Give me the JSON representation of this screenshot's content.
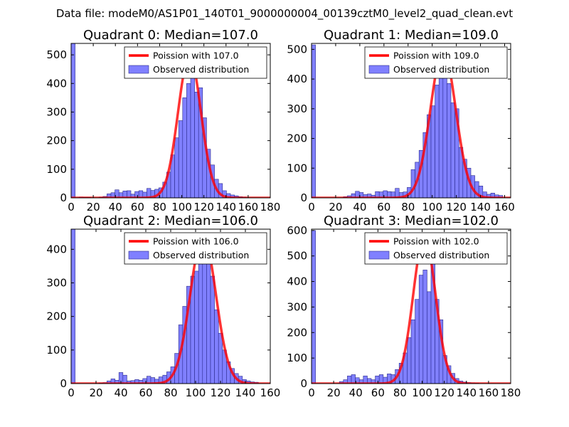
{
  "figure": {
    "suptitle": "Data file: modeM0/AS1P01_140T01_9000000004_00139cztM0_level2_quad_clean.evt"
  },
  "colors": {
    "bars": "#8080ff",
    "bar_edge": "#2a2a8a",
    "curve": "#ff0000",
    "axes": "#000000",
    "background": "#ffffff"
  },
  "chart_data": [
    {
      "type": "bar",
      "panel": "top-left",
      "title": "Quadrant 0: Median=107.0",
      "xlim": [
        0,
        180
      ],
      "ylim": [
        0,
        540
      ],
      "xticks": [
        0,
        20,
        40,
        60,
        80,
        100,
        120,
        140,
        160,
        180
      ],
      "yticks": [
        0,
        100,
        200,
        300,
        400,
        500
      ],
      "bin_width": 3.6,
      "legend": {
        "position": "top-right",
        "entries": [
          "Poission with 107.0",
          "Observed distribution"
        ]
      },
      "histogram": [
        {
          "x": 0,
          "value": 540
        },
        {
          "x": 7.2,
          "value": 3
        },
        {
          "x": 10.8,
          "value": 2
        },
        {
          "x": 14.4,
          "value": 2
        },
        {
          "x": 25.2,
          "value": 3
        },
        {
          "x": 28.8,
          "value": 5
        },
        {
          "x": 32.4,
          "value": 14
        },
        {
          "x": 36,
          "value": 18
        },
        {
          "x": 39.6,
          "value": 28
        },
        {
          "x": 43.2,
          "value": 18
        },
        {
          "x": 46.8,
          "value": 24
        },
        {
          "x": 50.4,
          "value": 25
        },
        {
          "x": 54,
          "value": 13
        },
        {
          "x": 57.6,
          "value": 22
        },
        {
          "x": 61.2,
          "value": 25
        },
        {
          "x": 64.8,
          "value": 20
        },
        {
          "x": 68.4,
          "value": 33
        },
        {
          "x": 72,
          "value": 26
        },
        {
          "x": 75.6,
          "value": 30
        },
        {
          "x": 79.2,
          "value": 35
        },
        {
          "x": 82.8,
          "value": 55
        },
        {
          "x": 86.4,
          "value": 90
        },
        {
          "x": 90,
          "value": 150
        },
        {
          "x": 93.6,
          "value": 210
        },
        {
          "x": 97.2,
          "value": 270
        },
        {
          "x": 100.8,
          "value": 350
        },
        {
          "x": 104.4,
          "value": 400
        },
        {
          "x": 108,
          "value": 520
        },
        {
          "x": 111.6,
          "value": 370
        },
        {
          "x": 115.2,
          "value": 385
        },
        {
          "x": 118.8,
          "value": 280
        },
        {
          "x": 122.4,
          "value": 170
        },
        {
          "x": 126,
          "value": 115
        },
        {
          "x": 129.6,
          "value": 65
        },
        {
          "x": 133.2,
          "value": 50
        },
        {
          "x": 136.8,
          "value": 25
        },
        {
          "x": 140.4,
          "value": 15
        },
        {
          "x": 144,
          "value": 10
        },
        {
          "x": 147.6,
          "value": 7
        },
        {
          "x": 151.2,
          "value": 4
        },
        {
          "x": 154.8,
          "value": 3
        }
      ],
      "poisson": {
        "mean": 107.0,
        "peak": 495
      }
    },
    {
      "type": "bar",
      "panel": "top-right",
      "title": "Quadrant 1: Median=109.0",
      "xlim": [
        0,
        165
      ],
      "ylim": [
        0,
        520
      ],
      "xticks": [
        0,
        20,
        40,
        60,
        80,
        100,
        120,
        140,
        160
      ],
      "yticks": [
        0,
        100,
        200,
        300,
        400,
        500
      ],
      "bin_width": 3.3,
      "legend": {
        "position": "top-right",
        "entries": [
          "Poission with 109.0",
          "Observed distribution"
        ]
      },
      "histogram": [
        {
          "x": 0,
          "value": 515
        },
        {
          "x": 26.4,
          "value": 4
        },
        {
          "x": 29.7,
          "value": 7
        },
        {
          "x": 33,
          "value": 14
        },
        {
          "x": 36.3,
          "value": 22
        },
        {
          "x": 39.6,
          "value": 18
        },
        {
          "x": 42.9,
          "value": 11
        },
        {
          "x": 46.2,
          "value": 13
        },
        {
          "x": 49.5,
          "value": 9
        },
        {
          "x": 52.8,
          "value": 21
        },
        {
          "x": 56.1,
          "value": 20
        },
        {
          "x": 59.4,
          "value": 24
        },
        {
          "x": 62.7,
          "value": 21
        },
        {
          "x": 66,
          "value": 20
        },
        {
          "x": 69.3,
          "value": 32
        },
        {
          "x": 72.6,
          "value": 18
        },
        {
          "x": 75.9,
          "value": 20
        },
        {
          "x": 79.2,
          "value": 35
        },
        {
          "x": 82.5,
          "value": 95
        },
        {
          "x": 85.8,
          "value": 120
        },
        {
          "x": 89.1,
          "value": 160
        },
        {
          "x": 92.4,
          "value": 220
        },
        {
          "x": 95.7,
          "value": 280
        },
        {
          "x": 99,
          "value": 310
        },
        {
          "x": 102.3,
          "value": 380
        },
        {
          "x": 105.6,
          "value": 415
        },
        {
          "x": 108.9,
          "value": 490
        },
        {
          "x": 112.2,
          "value": 385
        },
        {
          "x": 115.5,
          "value": 320
        },
        {
          "x": 118.8,
          "value": 300
        },
        {
          "x": 122.1,
          "value": 170
        },
        {
          "x": 125.4,
          "value": 130
        },
        {
          "x": 128.7,
          "value": 100
        },
        {
          "x": 132,
          "value": 75
        },
        {
          "x": 135.3,
          "value": 55
        },
        {
          "x": 138.6,
          "value": 40
        },
        {
          "x": 141.9,
          "value": 20
        },
        {
          "x": 145.2,
          "value": 12
        },
        {
          "x": 148.5,
          "value": 16
        },
        {
          "x": 151.8,
          "value": 10
        },
        {
          "x": 155.1,
          "value": 8
        }
      ],
      "poisson": {
        "mean": 109.0,
        "peak": 495
      }
    },
    {
      "type": "bar",
      "panel": "bottom-left",
      "title": "Quadrant 2: Median=106.0",
      "xlim": [
        0,
        160
      ],
      "ylim": [
        0,
        460
      ],
      "xticks": [
        0,
        20,
        40,
        60,
        80,
        100,
        120,
        140,
        160
      ],
      "yticks": [
        0,
        100,
        200,
        300,
        400
      ],
      "bin_width": 3.2,
      "legend": {
        "position": "top-right",
        "entries": [
          "Poission with 106.0",
          "Observed distribution"
        ]
      },
      "histogram": [
        {
          "x": 0,
          "value": 460
        },
        {
          "x": 22.4,
          "value": 2
        },
        {
          "x": 25.6,
          "value": 3
        },
        {
          "x": 28.8,
          "value": 8
        },
        {
          "x": 32,
          "value": 14
        },
        {
          "x": 35.2,
          "value": 10
        },
        {
          "x": 38.4,
          "value": 33
        },
        {
          "x": 41.6,
          "value": 25
        },
        {
          "x": 44.8,
          "value": 8
        },
        {
          "x": 48,
          "value": 9
        },
        {
          "x": 51.2,
          "value": 12
        },
        {
          "x": 54.4,
          "value": 10
        },
        {
          "x": 57.6,
          "value": 15
        },
        {
          "x": 60.8,
          "value": 22
        },
        {
          "x": 64,
          "value": 18
        },
        {
          "x": 67.2,
          "value": 13
        },
        {
          "x": 70.4,
          "value": 20
        },
        {
          "x": 73.6,
          "value": 25
        },
        {
          "x": 76.8,
          "value": 35
        },
        {
          "x": 80,
          "value": 50
        },
        {
          "x": 83.2,
          "value": 90
        },
        {
          "x": 86.4,
          "value": 175
        },
        {
          "x": 89.6,
          "value": 230
        },
        {
          "x": 92.8,
          "value": 290
        },
        {
          "x": 96,
          "value": 320
        },
        {
          "x": 99.2,
          "value": 335
        },
        {
          "x": 102.4,
          "value": 390
        },
        {
          "x": 105.6,
          "value": 420
        },
        {
          "x": 108.8,
          "value": 440
        },
        {
          "x": 112,
          "value": 320
        },
        {
          "x": 115.2,
          "value": 220
        },
        {
          "x": 118.4,
          "value": 150
        },
        {
          "x": 121.6,
          "value": 100
        },
        {
          "x": 124.8,
          "value": 65
        },
        {
          "x": 128,
          "value": 45
        },
        {
          "x": 131.2,
          "value": 30
        },
        {
          "x": 134.4,
          "value": 22
        },
        {
          "x": 137.6,
          "value": 12
        },
        {
          "x": 140.8,
          "value": 8
        },
        {
          "x": 144,
          "value": 5
        },
        {
          "x": 147.2,
          "value": 4
        }
      ],
      "poisson": {
        "mean": 106.0,
        "peak": 440
      }
    },
    {
      "type": "bar",
      "panel": "bottom-right",
      "title": "Quadrant 3: Median=102.0",
      "xlim": [
        0,
        180
      ],
      "ylim": [
        0,
        605
      ],
      "xticks": [
        0,
        20,
        40,
        60,
        80,
        100,
        120,
        140,
        160,
        180
      ],
      "yticks": [
        0,
        100,
        200,
        300,
        400,
        500,
        600
      ],
      "bin_width": 3.6,
      "legend": {
        "position": "top-right",
        "entries": [
          "Poission with 102.0",
          "Observed distribution"
        ]
      },
      "histogram": [
        {
          "x": 0,
          "value": 600
        },
        {
          "x": 25.2,
          "value": 8
        },
        {
          "x": 28.8,
          "value": 15
        },
        {
          "x": 32.4,
          "value": 30
        },
        {
          "x": 36,
          "value": 35
        },
        {
          "x": 39.6,
          "value": 23
        },
        {
          "x": 43.2,
          "value": 15
        },
        {
          "x": 46.8,
          "value": 30
        },
        {
          "x": 50.4,
          "value": 20
        },
        {
          "x": 54,
          "value": 15
        },
        {
          "x": 57.6,
          "value": 30
        },
        {
          "x": 61.2,
          "value": 35
        },
        {
          "x": 64.8,
          "value": 25
        },
        {
          "x": 68.4,
          "value": 38
        },
        {
          "x": 72,
          "value": 35
        },
        {
          "x": 75.6,
          "value": 55
        },
        {
          "x": 79.2,
          "value": 80
        },
        {
          "x": 82.8,
          "value": 120
        },
        {
          "x": 86.4,
          "value": 180
        },
        {
          "x": 90,
          "value": 250
        },
        {
          "x": 93.6,
          "value": 330
        },
        {
          "x": 97.2,
          "value": 425
        },
        {
          "x": 100.8,
          "value": 445
        },
        {
          "x": 104.4,
          "value": 360
        },
        {
          "x": 108,
          "value": 570
        },
        {
          "x": 111.6,
          "value": 330
        },
        {
          "x": 115.2,
          "value": 250
        },
        {
          "x": 118.8,
          "value": 110
        },
        {
          "x": 122.4,
          "value": 70
        },
        {
          "x": 126,
          "value": 40
        },
        {
          "x": 129.6,
          "value": 20
        },
        {
          "x": 133.2,
          "value": 10
        },
        {
          "x": 136.8,
          "value": 6
        },
        {
          "x": 140.4,
          "value": 4
        },
        {
          "x": 144,
          "value": 3
        },
        {
          "x": 147.6,
          "value": 2
        }
      ],
      "poisson": {
        "mean": 102.0,
        "peak": 575
      }
    }
  ]
}
